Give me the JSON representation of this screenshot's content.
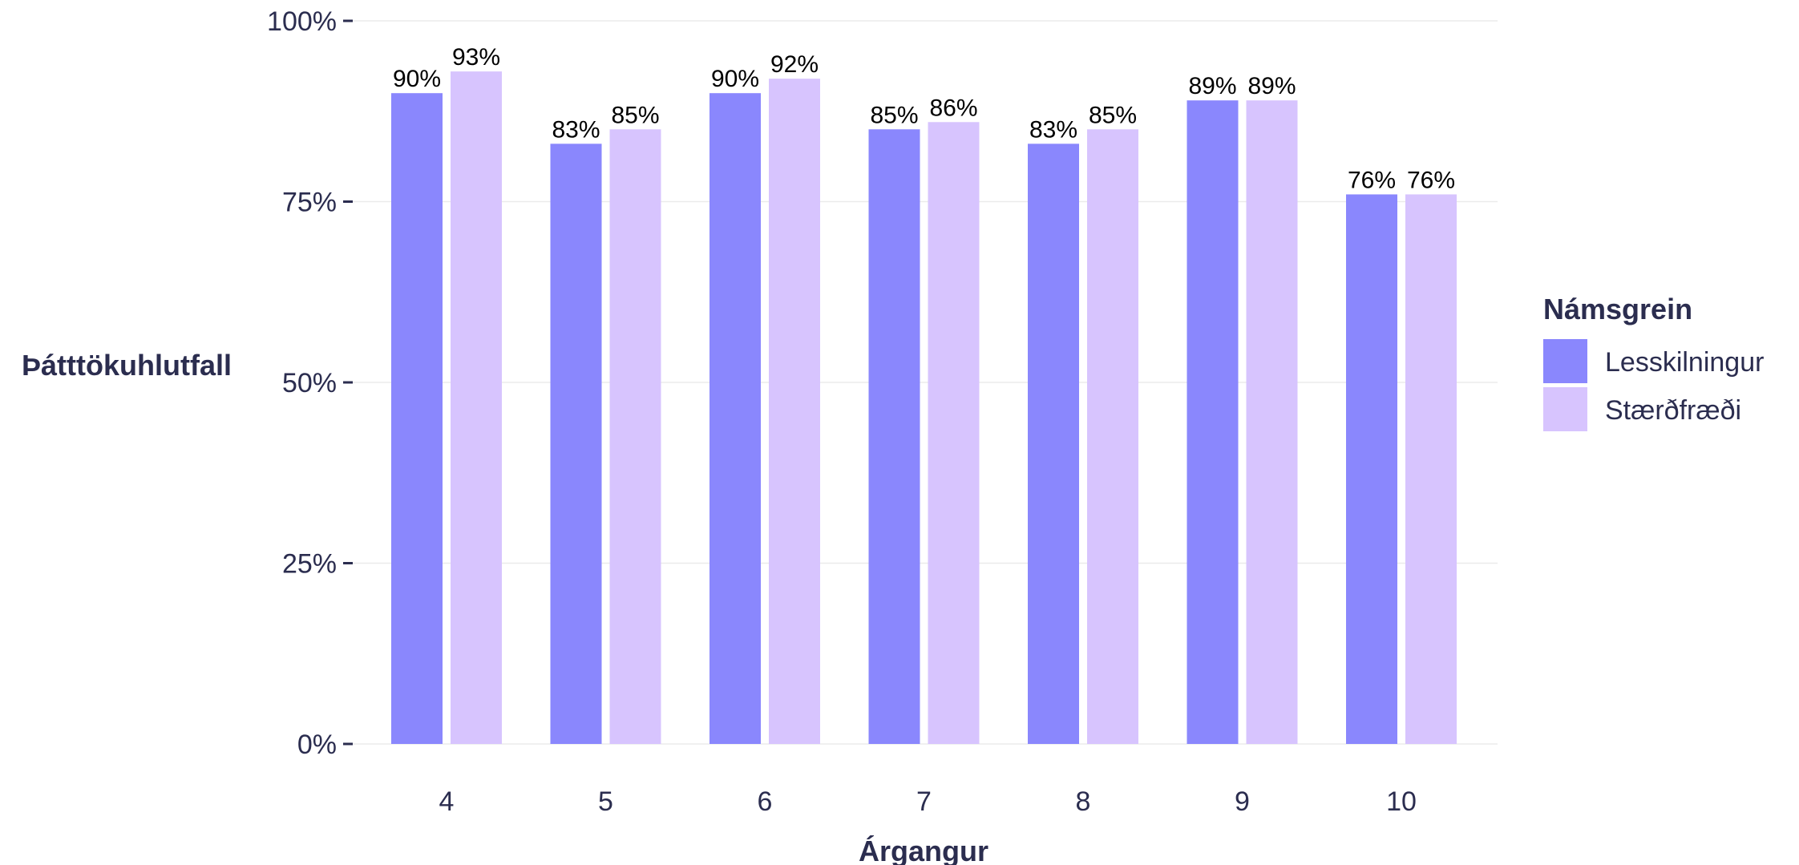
{
  "chart_data": {
    "type": "bar",
    "categories": [
      "4",
      "5",
      "6",
      "7",
      "8",
      "9",
      "10"
    ],
    "series": [
      {
        "name": "Lesskilningur",
        "values": [
          90,
          83,
          90,
          85,
          83,
          89,
          76
        ],
        "labels": [
          "90%",
          "83%",
          "90%",
          "85%",
          "83%",
          "89%",
          "76%"
        ],
        "color": "#8a87fd"
      },
      {
        "name": "Stærðfræði",
        "values": [
          93,
          85,
          92,
          86,
          85,
          89,
          76
        ],
        "labels": [
          "93%",
          "85%",
          "92%",
          "86%",
          "85%",
          "89%",
          "76%"
        ],
        "color": "#d7c4fe"
      }
    ],
    "xlabel": "Árgangur",
    "ylabel": "Þátttökuhlutfall",
    "ylim": [
      0,
      100
    ],
    "yticks": [
      0,
      25,
      50,
      75,
      100
    ],
    "ytick_labels": [
      "0%",
      "25%",
      "50%",
      "75%",
      "100%"
    ],
    "legend_title": "Námsgrein",
    "legend_position": "right",
    "grid": true,
    "grid_color": "#ebebeb",
    "text_color": "#2b2d4f"
  }
}
